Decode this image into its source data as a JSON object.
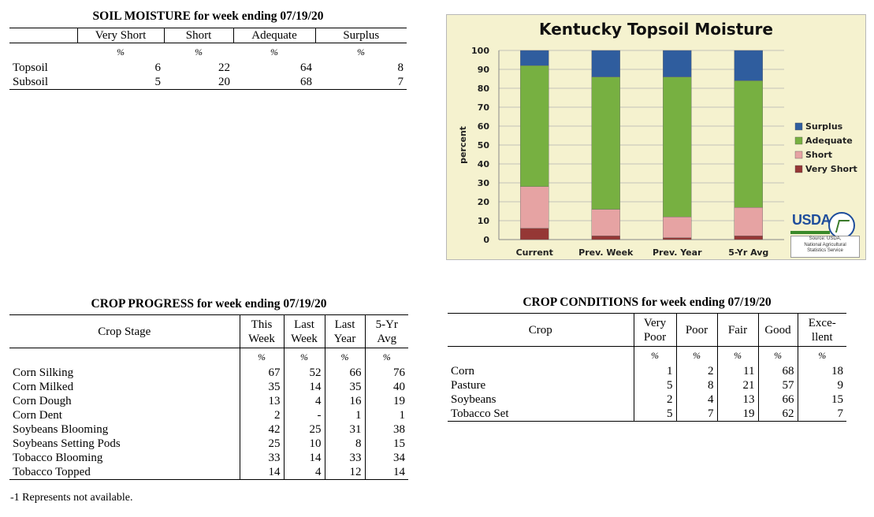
{
  "soil": {
    "title": "SOIL MOISTURE for week ending 07/19/20",
    "headers": [
      "Very Short",
      "Short",
      "Adequate",
      "Surplus"
    ],
    "units": [
      "%",
      "%",
      "%",
      "%"
    ],
    "rows": [
      {
        "label": "Topsoil",
        "values": [
          "6",
          "22",
          "64",
          "8"
        ]
      },
      {
        "label": "Subsoil",
        "values": [
          "5",
          "20",
          "68",
          "7"
        ]
      }
    ]
  },
  "chart_data": {
    "type": "bar",
    "stacked": true,
    "title": "Kentucky Topsoil Moisture",
    "ylabel": "percent",
    "ylim": [
      0,
      100
    ],
    "yticks": [
      "0",
      "10",
      "20",
      "30",
      "40",
      "50",
      "60",
      "70",
      "80",
      "90",
      "100"
    ],
    "categories": [
      "Current",
      "Prev. Week",
      "Prev. Year",
      "5-Yr Avg"
    ],
    "series": [
      {
        "name": "Very Short",
        "color": "#953735",
        "values": [
          6,
          2,
          1,
          2
        ]
      },
      {
        "name": "Short",
        "color": "#e6a3a3",
        "values": [
          22,
          14,
          11,
          15
        ]
      },
      {
        "name": "Adequate",
        "color": "#77b041",
        "values": [
          64,
          70,
          74,
          67
        ]
      },
      {
        "name": "Surplus",
        "color": "#2f5d9e",
        "values": [
          8,
          14,
          14,
          16
        ]
      }
    ],
    "legend_order": [
      "Surplus",
      "Adequate",
      "Short",
      "Very Short"
    ],
    "legend_position": "right",
    "grid": true,
    "logo_text": "USDA",
    "source_lines": [
      "Source: USDA,",
      "National Agricultural",
      "Statistics Service"
    ]
  },
  "progress": {
    "title": "CROP PROGRESS for week ending 07/19/20",
    "stage_header": "Crop Stage",
    "headers": [
      [
        "This",
        "Week"
      ],
      [
        "Last",
        "Week"
      ],
      [
        "Last",
        "Year"
      ],
      [
        "5-Yr",
        "Avg"
      ]
    ],
    "units": [
      "%",
      "%",
      "%",
      "%"
    ],
    "rows": [
      {
        "label": "Corn Silking",
        "values": [
          "67",
          "52",
          "66",
          "76"
        ]
      },
      {
        "label": "Corn Milked",
        "values": [
          "35",
          "14",
          "35",
          "40"
        ]
      },
      {
        "label": "Corn Dough",
        "values": [
          "13",
          "4",
          "16",
          "19"
        ]
      },
      {
        "label": "Corn Dent",
        "values": [
          "2",
          "-",
          "1",
          "1"
        ]
      },
      {
        "label": "Soybeans Blooming",
        "values": [
          "42",
          "25",
          "31",
          "38"
        ]
      },
      {
        "label": "Soybeans Setting Pods",
        "values": [
          "25",
          "10",
          "8",
          "15"
        ]
      },
      {
        "label": "Tobacco Blooming",
        "values": [
          "33",
          "14",
          "33",
          "34"
        ]
      },
      {
        "label": "Tobacco Topped",
        "values": [
          "14",
          "4",
          "12",
          "14"
        ]
      }
    ],
    "footnote": "-1 Represents not available."
  },
  "conditions": {
    "title": "CROP CONDITIONS for week ending 07/19/20",
    "crop_header": "Crop",
    "headers": [
      [
        "Very",
        "Poor"
      ],
      [
        "Poor"
      ],
      [
        "Fair"
      ],
      [
        "Good"
      ],
      [
        "Exce-",
        "llent"
      ]
    ],
    "units": [
      "%",
      "%",
      "%",
      "%",
      "%"
    ],
    "rows": [
      {
        "label": "Corn",
        "values": [
          "1",
          "2",
          "11",
          "68",
          "18"
        ]
      },
      {
        "label": "Pasture",
        "values": [
          "5",
          "8",
          "21",
          "57",
          "9"
        ]
      },
      {
        "label": "Soybeans",
        "values": [
          "2",
          "4",
          "13",
          "66",
          "15"
        ]
      },
      {
        "label": "Tobacco Set",
        "values": [
          "5",
          "7",
          "19",
          "62",
          "7"
        ]
      }
    ]
  }
}
